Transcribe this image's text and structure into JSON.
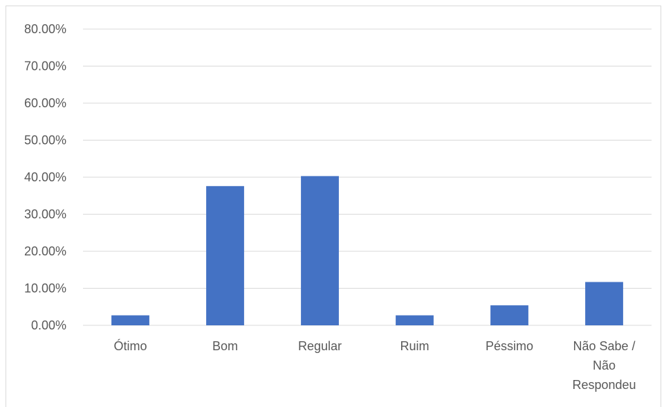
{
  "chart_data": {
    "type": "bar",
    "categories": [
      [
        "Ótimo"
      ],
      [
        "Bom"
      ],
      [
        "Regular"
      ],
      [
        "Ruim"
      ],
      [
        "Péssimo"
      ],
      [
        "Não Sabe /",
        "Não",
        "Respondeu"
      ]
    ],
    "values": [
      2.7,
      37.6,
      40.3,
      2.7,
      5.4,
      11.7
    ],
    "ylim": [
      0,
      80
    ],
    "yticks": [
      "0.00%",
      "10.00%",
      "20.00%",
      "30.00%",
      "40.00%",
      "50.00%",
      "60.00%",
      "70.00%",
      "80.00%"
    ],
    "title": "",
    "xlabel": "",
    "ylabel": "",
    "grid": true,
    "legend": "none",
    "bar_color": "#4472C4",
    "grid_color": "#d9d9d9"
  }
}
